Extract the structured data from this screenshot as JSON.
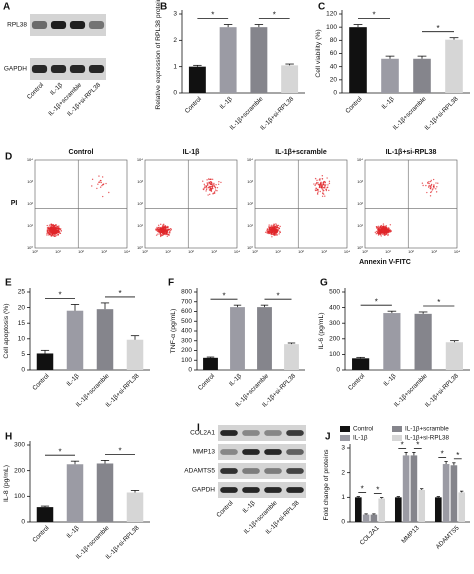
{
  "chart_data": [
    {
      "type": "bar",
      "panel": "B",
      "y_label": "Relative expression of RPL38 protein",
      "categories": [
        "Control",
        "IL-1β",
        "IL-1β+scramble",
        "IL-1β+si-RPL38"
      ],
      "values": [
        1.0,
        2.5,
        2.5,
        1.05
      ],
      "errors": [
        0.05,
        0.1,
        0.1,
        0.05
      ],
      "colors": [
        "#111111",
        "#9b9ba4",
        "#85858c",
        "#d6d6d6"
      ],
      "ylim": [
        0,
        3
      ],
      "yticks": [
        0,
        1,
        2,
        3
      ],
      "significance": [
        "*",
        "*"
      ]
    },
    {
      "type": "bar",
      "panel": "C",
      "y_label": "Cell viability (%)",
      "categories": [
        "Control",
        "IL-1β",
        "IL-1β+scramble",
        "IL-1β+si-RPL38"
      ],
      "values": [
        100,
        52,
        52,
        81
      ],
      "errors": [
        4,
        4,
        4,
        3
      ],
      "colors": [
        "#111111",
        "#9b9ba4",
        "#85858c",
        "#d6d6d6"
      ],
      "ylim": [
        0,
        120
      ],
      "yticks": [
        0,
        20,
        40,
        60,
        80,
        100,
        120
      ],
      "significance": [
        "*",
        "*"
      ]
    },
    {
      "type": "bar",
      "panel": "E",
      "y_label": "Cell apoptosis (%)",
      "categories": [
        "Control",
        "IL-1β",
        "IL-1β+scramble",
        "IL-1β+si-RPL38"
      ],
      "values": [
        5.3,
        19,
        19.5,
        9.7
      ],
      "errors": [
        1,
        2,
        2,
        1.3
      ],
      "colors": [
        "#111111",
        "#9b9ba4",
        "#85858c",
        "#d6d6d6"
      ],
      "ylim": [
        0,
        25
      ],
      "yticks": [
        0,
        5,
        10,
        15,
        20,
        25
      ],
      "significance": [
        "*",
        "*"
      ]
    },
    {
      "type": "bar",
      "panel": "F",
      "y_label": "TNF-α (pg/mL)",
      "categories": [
        "Control",
        "IL-1β",
        "IL-1β+scramble",
        "IL-1β+si-RPL38"
      ],
      "values": [
        125,
        645,
        645,
        265
      ],
      "errors": [
        8,
        20,
        20,
        12
      ],
      "colors": [
        "#111111",
        "#9b9ba4",
        "#85858c",
        "#d6d6d6"
      ],
      "ylim": [
        0,
        800
      ],
      "yticks": [
        0,
        100,
        200,
        300,
        400,
        500,
        600,
        700,
        800
      ],
      "significance": [
        "*",
        "*"
      ]
    },
    {
      "type": "bar",
      "panel": "G",
      "y_label": "IL-6 (pg/mL)",
      "categories": [
        "Control",
        "IL-1β",
        "IL-1β+scramble",
        "IL-1β+si-RPL38"
      ],
      "values": [
        75,
        365,
        360,
        178
      ],
      "errors": [
        6,
        12,
        12,
        10
      ],
      "colors": [
        "#111111",
        "#9b9ba4",
        "#85858c",
        "#d6d6d6"
      ],
      "ylim": [
        0,
        500
      ],
      "yticks": [
        0,
        100,
        200,
        300,
        400,
        500
      ],
      "significance": [
        "*",
        "*"
      ]
    },
    {
      "type": "bar",
      "panel": "H",
      "y_label": "IL-8 (pg/mL)",
      "categories": [
        "Control",
        "IL-1β",
        "IL-1β+scramble",
        "IL-1β+si-RPL38"
      ],
      "values": [
        58,
        225,
        228,
        115
      ],
      "errors": [
        4,
        12,
        12,
        8
      ],
      "colors": [
        "#111111",
        "#9b9ba4",
        "#85858c",
        "#d6d6d6"
      ],
      "ylim": [
        0,
        300
      ],
      "yticks": [
        0,
        100,
        200,
        300
      ],
      "significance": [
        "*",
        "*"
      ]
    },
    {
      "type": "grouped-bar",
      "panel": "J",
      "y_label": "Fold change of proteins",
      "categories": [
        "COL2A1",
        "MMP13",
        "ADAMTS5"
      ],
      "series": [
        {
          "name": "Control",
          "color": "#111111",
          "values": [
            1,
            1,
            1
          ],
          "errors": [
            0.03,
            0.03,
            0.03
          ]
        },
        {
          "name": "IL-1β",
          "color": "#9b9ba4",
          "values": [
            0.3,
            2.7,
            2.35
          ],
          "errors": [
            0.03,
            0.12,
            0.1
          ]
        },
        {
          "name": "IL-1β+scramble",
          "color": "#85858c",
          "values": [
            0.3,
            2.7,
            2.3
          ],
          "errors": [
            0.03,
            0.12,
            0.1
          ]
        },
        {
          "name": "IL-1β+si-RPL38",
          "color": "#d6d6d6",
          "values": [
            0.95,
            1.3,
            1.2
          ],
          "errors": [
            0.04,
            0.05,
            0.05
          ]
        }
      ],
      "ylim": [
        0,
        3
      ],
      "yticks": [
        0,
        1,
        2,
        3
      ],
      "significance": [
        "*",
        "*",
        "*",
        "*",
        "*",
        "*"
      ]
    }
  ],
  "blots": [
    {
      "panel": "A",
      "proteins": [
        "RPL38",
        "GAPDH"
      ],
      "lanes": [
        "Control",
        "IL-1β",
        "IL-1β+scramble",
        "IL-1β+si-RPL38"
      ]
    },
    {
      "panel": "I",
      "proteins": [
        "COL2A1",
        "MMP13",
        "ADAMTS5",
        "GAPDH"
      ],
      "lanes": [
        "Control",
        "IL-1β",
        "IL-1β+scramble",
        "IL-1β+si-RPL38"
      ]
    }
  ],
  "flow": {
    "panel": "D",
    "titles": [
      "Control",
      "IL-1β",
      "IL-1β+scramble",
      "IL-1β+si-RPL38"
    ],
    "y_label": "PI",
    "x_label": "Annexin V-FITC",
    "ticks": [
      "10⁰",
      "10¹",
      "10²",
      "10³",
      "10⁴"
    ]
  }
}
